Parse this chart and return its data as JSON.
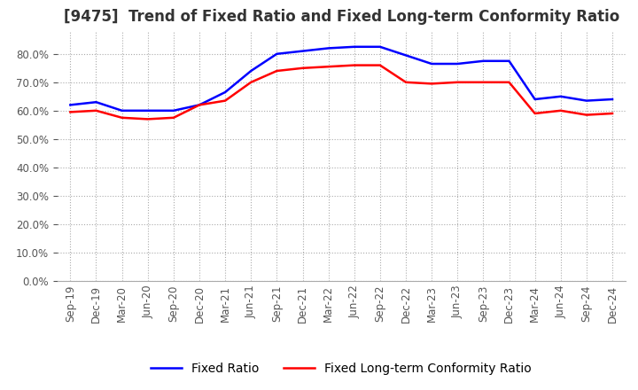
{
  "title": "[9475]  Trend of Fixed Ratio and Fixed Long-term Conformity Ratio",
  "x_labels": [
    "Sep-19",
    "Dec-19",
    "Mar-20",
    "Jun-20",
    "Sep-20",
    "Dec-20",
    "Mar-21",
    "Jun-21",
    "Sep-21",
    "Dec-21",
    "Mar-22",
    "Jun-22",
    "Sep-22",
    "Dec-22",
    "Mar-23",
    "Jun-23",
    "Sep-23",
    "Dec-23",
    "Mar-24",
    "Jun-24",
    "Sep-24",
    "Dec-24"
  ],
  "fixed_ratio": [
    0.62,
    0.63,
    0.6,
    0.6,
    0.6,
    0.62,
    0.665,
    0.74,
    0.8,
    0.81,
    0.82,
    0.825,
    0.825,
    0.795,
    0.765,
    0.765,
    0.775,
    0.775,
    0.64,
    0.65,
    0.635,
    0.64
  ],
  "fixed_lt_ratio": [
    0.595,
    0.6,
    0.575,
    0.57,
    0.575,
    0.62,
    0.635,
    0.7,
    0.74,
    0.75,
    0.755,
    0.76,
    0.76,
    0.7,
    0.695,
    0.7,
    0.7,
    0.7,
    0.59,
    0.6,
    0.585,
    0.59
  ],
  "fixed_ratio_color": "#0000FF",
  "fixed_lt_ratio_color": "#FF0000",
  "ylim": [
    0.0,
    0.88
  ],
  "yticks": [
    0.0,
    0.1,
    0.2,
    0.3,
    0.4,
    0.5,
    0.6,
    0.7,
    0.8
  ],
  "background_color": "#ffffff",
  "grid_color": "#aaaaaa",
  "legend_fixed": "Fixed Ratio",
  "legend_fixed_lt": "Fixed Long-term Conformity Ratio",
  "title_fontsize": 12,
  "tick_fontsize": 8.5,
  "legend_fontsize": 10
}
